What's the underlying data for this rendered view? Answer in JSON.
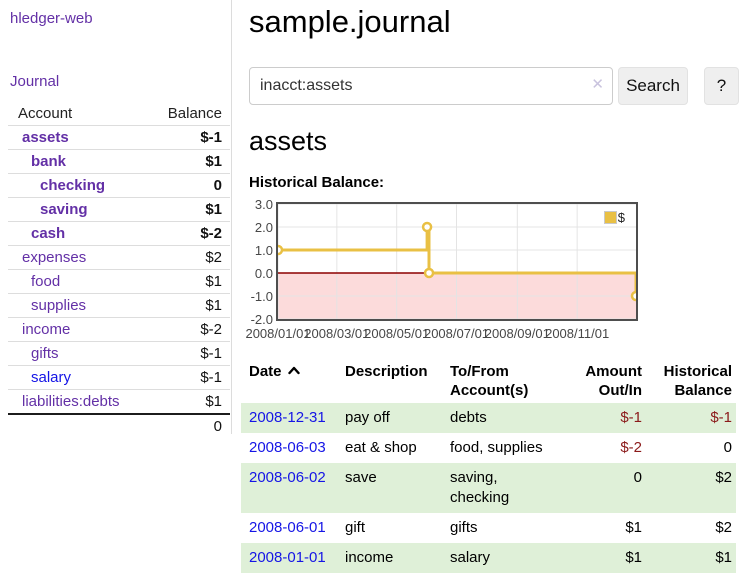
{
  "colors": {
    "accent_purple": "#6330a6",
    "link_blue": "#1515e6",
    "negative_strong": "#8b1a1a",
    "negative_soft": "#c4737d",
    "row_stripe_green": "#dff0d8",
    "chart_line_gold": "#e9c044",
    "chart_negative_fill": "#fcdbdb",
    "chart_zero_line": "#8b0000"
  },
  "sidebar": {
    "app_title": "hledger-web",
    "journal_label": "Journal",
    "table": {
      "account_header": "Account",
      "balance_header": "Balance",
      "rows": [
        {
          "name": "assets",
          "balance": "$-1",
          "depth": 0,
          "bold": true,
          "neg": "strong"
        },
        {
          "name": "bank",
          "balance": "$1",
          "depth": 1,
          "bold": true,
          "neg": "none"
        },
        {
          "name": "checking",
          "balance": "0",
          "depth": 2,
          "bold": true,
          "neg": "none"
        },
        {
          "name": "saving",
          "balance": "$1",
          "depth": 2,
          "bold": true,
          "neg": "none"
        },
        {
          "name": "cash",
          "balance": "$-2",
          "depth": 1,
          "bold": true,
          "neg": "strong"
        },
        {
          "name": "expenses",
          "balance": "$2",
          "depth": 0,
          "bold": false,
          "neg": "none"
        },
        {
          "name": "food",
          "balance": "$1",
          "depth": 1,
          "bold": false,
          "neg": "none"
        },
        {
          "name": "supplies",
          "balance": "$1",
          "depth": 1,
          "bold": false,
          "neg": "none"
        },
        {
          "name": "income",
          "balance": "$-2",
          "depth": 0,
          "bold": false,
          "neg": "soft"
        },
        {
          "name": "gifts",
          "balance": "$-1",
          "depth": 1,
          "bold": false,
          "neg": "soft"
        },
        {
          "name": "salary",
          "balance": "$-1",
          "depth": 1,
          "bold": false,
          "neg": "soft",
          "blue": true
        },
        {
          "name": "liabilities:debts",
          "balance": "$1",
          "depth": 0,
          "bold": false,
          "neg": "none"
        }
      ],
      "total": "0"
    }
  },
  "header": {
    "title": "sample.journal"
  },
  "search": {
    "value": "inacct:assets",
    "clear_icon": "✕",
    "button_label": "Search",
    "help_label": "?"
  },
  "account_page": {
    "heading": "assets",
    "chart_label": "Historical Balance:"
  },
  "chart_data": {
    "type": "line",
    "title": "Historical Balance:",
    "step": true,
    "x_range": [
      "2008-01-01",
      "2008-12-31"
    ],
    "ylim": [
      -2,
      3
    ],
    "y_ticks": [
      "3.0",
      "2.0",
      "1.0",
      "0.0",
      "-1.0",
      "-2.0"
    ],
    "x_ticks": [
      "2008/01/01",
      "2008/03/01",
      "2008/05/01",
      "2008/07/01",
      "2008/09/01",
      "2008/11/01"
    ],
    "grid": true,
    "legend": {
      "label": "$",
      "position": "top-right"
    },
    "series": [
      {
        "name": "$",
        "color": "#e9c044",
        "points": [
          {
            "x": "2008-01-01",
            "y": 1
          },
          {
            "x": "2008-06-01",
            "y": 2
          },
          {
            "x": "2008-06-03",
            "y": 0
          },
          {
            "x": "2008-12-31",
            "y": -1
          }
        ]
      }
    ]
  },
  "register": {
    "columns": {
      "date": "Date",
      "description": "Description",
      "accounts": "To/From Account(s)",
      "amount": "Amount Out/In",
      "balance": "Historical Balance"
    },
    "rows": [
      {
        "date": "2008-12-31",
        "description": "pay off",
        "accounts": "debts",
        "amount": "$-1",
        "balance": "$-1"
      },
      {
        "date": "2008-06-03",
        "description": "eat & shop",
        "accounts": "food, supplies",
        "amount": "$-2",
        "balance": "0"
      },
      {
        "date": "2008-06-02",
        "description": "save",
        "accounts": "saving, checking",
        "amount": "0",
        "balance": "$2"
      },
      {
        "date": "2008-06-01",
        "description": "gift",
        "accounts": "gifts",
        "amount": "$1",
        "balance": "$2"
      },
      {
        "date": "2008-01-01",
        "description": "income",
        "accounts": "salary",
        "amount": "$1",
        "balance": "$1"
      }
    ]
  }
}
